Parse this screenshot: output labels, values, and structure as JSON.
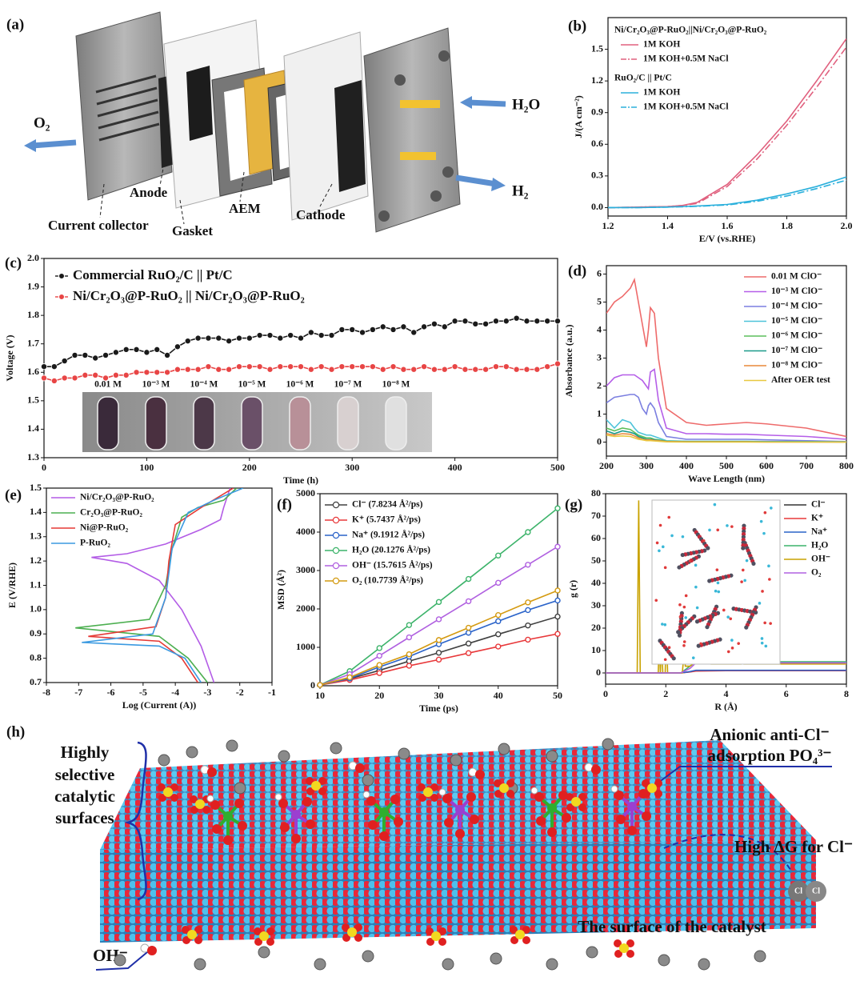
{
  "chart_data": [
    {
      "type": "line",
      "label": "(b)",
      "xlabel": "E/V (vs.RHE)",
      "ylabel": "J/(A cm⁻²)",
      "legend": "upper left",
      "x": [
        1.2,
        1.3,
        1.4,
        1.45,
        1.5,
        1.6,
        1.7,
        1.8,
        1.9,
        2.0
      ],
      "xlim": [
        1.2,
        2.0
      ],
      "xticks": [
        1.2,
        1.4,
        1.6,
        1.8,
        {
          "value": 2,
          "label": "2.0"
        }
      ],
      "ylim": [
        -0.08,
        1.8
      ],
      "yticks": [
        {
          "value": 0,
          "label": "0.0"
        },
        0.3,
        0.6,
        0.9,
        1.2,
        1.5
      ],
      "series_groups": [
        {
          "title": "Ni/Cr₂O₃@P-RuO₂||Ni/Cr₂O₃@P-RuO₂",
          "series": [
            {
              "name": "1M KOH",
              "color": "#e0607e",
              "dash": false,
              "values": [
                0,
                0.005,
                0.01,
                0.02,
                0.05,
                0.22,
                0.5,
                0.82,
                1.2,
                1.6
              ]
            },
            {
              "name": "1M KOH+0.5M NaCl",
              "color": "#e0607e",
              "dash": true,
              "values": [
                0,
                0.005,
                0.01,
                0.02,
                0.04,
                0.2,
                0.46,
                0.78,
                1.14,
                1.52
              ]
            }
          ]
        },
        {
          "title": "RuO₂/C || Pt/C",
          "series": [
            {
              "name": "1M KOH",
              "color": "#2bb0dc",
              "dash": false,
              "values": [
                0,
                0,
                0.005,
                0.01,
                0.015,
                0.03,
                0.07,
                0.13,
                0.2,
                0.29
              ]
            },
            {
              "name": "1M KOH+0.5M NaCl",
              "color": "#2bb0dc",
              "dash": true,
              "values": [
                0,
                0,
                0.005,
                0.008,
                0.012,
                0.025,
                0.06,
                0.11,
                0.18,
                0.26
              ]
            }
          ]
        }
      ]
    },
    {
      "type": "line",
      "label": "(c)",
      "xlabel": "Time (h)",
      "ylabel": "Voltage (V)",
      "legend": "upper left",
      "markers": true,
      "x": [
        0,
        10,
        20,
        30,
        40,
        50,
        60,
        70,
        80,
        90,
        100,
        110,
        120,
        130,
        140,
        150,
        160,
        170,
        180,
        190,
        200,
        210,
        220,
        230,
        240,
        250,
        260,
        270,
        280,
        290,
        300,
        310,
        320,
        330,
        340,
        350,
        360,
        370,
        380,
        390,
        400,
        410,
        420,
        430,
        440,
        450,
        460,
        470,
        480,
        490,
        500
      ],
      "xlim": [
        0,
        500
      ],
      "xticks": [
        0,
        100,
        200,
        300,
        400,
        500
      ],
      "ylim": [
        1.3,
        2.0
      ],
      "yticks": [
        1.3,
        1.4,
        1.5,
        1.6,
        1.7,
        1.8,
        1.9,
        {
          "value": 2,
          "label": "2.0"
        }
      ],
      "series": [
        {
          "name": "Commercial RuO₂/C || Pt/C",
          "color": "#1a1a1a",
          "values": [
            1.62,
            1.62,
            1.64,
            1.66,
            1.66,
            1.65,
            1.66,
            1.67,
            1.68,
            1.68,
            1.67,
            1.68,
            1.66,
            1.69,
            1.71,
            1.72,
            1.72,
            1.72,
            1.71,
            1.72,
            1.72,
            1.73,
            1.73,
            1.72,
            1.73,
            1.72,
            1.74,
            1.73,
            1.73,
            1.75,
            1.75,
            1.74,
            1.75,
            1.76,
            1.75,
            1.76,
            1.74,
            1.76,
            1.77,
            1.76,
            1.78,
            1.78,
            1.77,
            1.77,
            1.78,
            1.78,
            1.79,
            1.78,
            1.78,
            1.78,
            1.78
          ]
        },
        {
          "name": "Ni/Cr₂O₃@P-RuO₂ || Ni/Cr₂O₃@P-RuO₂",
          "color": "#e84545",
          "values": [
            1.58,
            1.57,
            1.58,
            1.58,
            1.59,
            1.59,
            1.58,
            1.59,
            1.59,
            1.6,
            1.6,
            1.6,
            1.6,
            1.61,
            1.61,
            1.61,
            1.62,
            1.61,
            1.61,
            1.62,
            1.62,
            1.62,
            1.61,
            1.62,
            1.62,
            1.62,
            1.61,
            1.62,
            1.61,
            1.62,
            1.62,
            1.62,
            1.62,
            1.61,
            1.62,
            1.61,
            1.61,
            1.62,
            1.61,
            1.61,
            1.62,
            1.61,
            1.61,
            1.61,
            1.62,
            1.62,
            1.61,
            1.61,
            1.61,
            1.62,
            1.63
          ]
        }
      ],
      "inset_labels": [
        "0.01 M",
        "10⁻³ M",
        "10⁻⁴ M",
        "10⁻⁵ M",
        "10⁻⁶ M",
        "10⁻⁷ M",
        "10⁻⁸ M"
      ]
    },
    {
      "type": "line",
      "label": "(d)",
      "xlabel": "Wave Length (nm)",
      "ylabel": "Absorbance (a.u.)",
      "legend": "upper right",
      "x": [
        200,
        220,
        240,
        260,
        270,
        280,
        290,
        300,
        305,
        310,
        320,
        330,
        350,
        400,
        450,
        500,
        550,
        600,
        700,
        800
      ],
      "xlim": [
        200,
        800
      ],
      "xticks": [
        200,
        300,
        400,
        500,
        600,
        700,
        800
      ],
      "ylim": [
        -0.5,
        6.3
      ],
      "yticks": [
        0,
        1,
        2,
        3,
        4,
        5,
        6
      ],
      "series": [
        {
          "name": "0.01 M ClO⁻",
          "color": "#ee6b6b",
          "values": [
            4.6,
            5.0,
            5.2,
            5.5,
            5.8,
            5.0,
            4.2,
            3.4,
            4.0,
            4.8,
            4.6,
            3.0,
            1.2,
            0.7,
            0.6,
            0.65,
            0.7,
            0.65,
            0.5,
            0.2
          ]
        },
        {
          "name": "10⁻³ M ClO⁻",
          "color": "#b55ee8",
          "values": [
            2.0,
            2.3,
            2.4,
            2.4,
            2.4,
            2.3,
            2.2,
            2.0,
            1.9,
            2.5,
            2.6,
            1.5,
            0.5,
            0.3,
            0.3,
            0.28,
            0.28,
            0.25,
            0.2,
            0.1
          ]
        },
        {
          "name": "10⁻⁴ M ClO⁻",
          "color": "#7b7fe0",
          "values": [
            1.4,
            1.6,
            1.65,
            1.7,
            1.7,
            1.6,
            1.2,
            1.0,
            1.3,
            1.4,
            1.2,
            0.7,
            0.2,
            0.1,
            0.1,
            0.1,
            0.1,
            0.08,
            0.05,
            0.02
          ]
        },
        {
          "name": "10⁻⁵ M ClO⁻",
          "color": "#4cc3d9",
          "values": [
            0.8,
            0.5,
            0.8,
            0.7,
            0.5,
            0.35,
            0.3,
            0.25,
            0.25,
            0.25,
            0.2,
            0.15,
            0.05,
            0.03,
            0.03,
            0.03,
            0.03,
            0.02,
            0.02,
            0.01
          ]
        },
        {
          "name": "10⁻⁶ M ClO⁻",
          "color": "#5cbf5c",
          "values": [
            0.5,
            0.4,
            0.5,
            0.45,
            0.35,
            0.25,
            0.2,
            0.15,
            0.15,
            0.15,
            0.1,
            0.08,
            0.03,
            0.02,
            0.02,
            0.02,
            0.02,
            0.01,
            0.01,
            0.01
          ]
        },
        {
          "name": "10⁻⁷ M ClO⁻",
          "color": "#1a9a8a",
          "values": [
            0.4,
            0.3,
            0.4,
            0.35,
            0.3,
            0.2,
            0.15,
            0.1,
            0.1,
            0.1,
            0.08,
            0.06,
            0.02,
            0.01,
            0.01,
            0.01,
            0.01,
            0.01,
            0.01,
            0
          ]
        },
        {
          "name": "10⁻⁸ M ClO⁻",
          "color": "#e8893a",
          "values": [
            0.3,
            0.25,
            0.3,
            0.28,
            0.22,
            0.15,
            0.1,
            0.08,
            0.08,
            0.08,
            0.06,
            0.05,
            0.02,
            0.01,
            0.01,
            0.01,
            0.01,
            0,
            0,
            0
          ]
        },
        {
          "name": "After OER test",
          "color": "#e8c840",
          "values": [
            0.25,
            0.2,
            0.22,
            0.2,
            0.15,
            0.1,
            0.08,
            0.05,
            0.05,
            0.05,
            0.04,
            0.03,
            0.01,
            0,
            0,
            0,
            0,
            0,
            0,
            0
          ]
        }
      ]
    },
    {
      "type": "line",
      "label": "(e)",
      "xlabel": "Log (Current (A))",
      "ylabel": "E (V/RHE)",
      "legend": "upper left",
      "xlim": [
        -8,
        -1
      ],
      "xticks": [
        -8,
        -7,
        -6,
        -5,
        -4,
        -3,
        -2,
        -1
      ],
      "ylim": [
        0.7,
        1.5
      ],
      "yticks": [
        0.7,
        0.8,
        0.9,
        {
          "value": 1,
          "label": "1.0"
        },
        1.1,
        1.2,
        1.3,
        1.4,
        1.5
      ],
      "series": [
        {
          "name": "Ni/Cr₂O₃@P-RuO₂",
          "color": "#b35ce6",
          "x": [
            -2.8,
            -3.2,
            -3.8,
            -4.5,
            -5.5,
            -6.6,
            -5.5,
            -4.3,
            -3.2,
            -2.6,
            -2.5,
            -2.3
          ],
          "values": [
            0.7,
            0.85,
            1.0,
            1.12,
            1.19,
            1.215,
            1.23,
            1.27,
            1.33,
            1.37,
            1.42,
            1.5
          ]
        },
        {
          "name": "Cr₂O₃@P-RuO₂",
          "color": "#4caf50",
          "x": [
            -3.0,
            -3.6,
            -4.5,
            -7.1,
            -4.8,
            -4.3,
            -4.1,
            -3.8,
            -3.3,
            -2.5,
            -2.1
          ],
          "values": [
            0.7,
            0.8,
            0.89,
            0.925,
            0.96,
            1.1,
            1.25,
            1.38,
            1.42,
            1.45,
            1.5
          ]
        },
        {
          "name": "Ni@P-RuO₂",
          "color": "#e53935",
          "x": [
            -3.3,
            -3.8,
            -4.5,
            -6.7,
            -4.6,
            -4.3,
            -4.2,
            -4.0,
            -3.2,
            -2.2
          ],
          "values": [
            0.7,
            0.8,
            0.87,
            0.89,
            0.93,
            1.05,
            1.2,
            1.35,
            1.42,
            1.5
          ]
        },
        {
          "name": "P-RuO₂",
          "color": "#3b9ae1",
          "x": [
            -3.2,
            -3.7,
            -4.5,
            -6.9,
            -4.7,
            -4.3,
            -4.1,
            -3.6,
            -2.8,
            -1.9
          ],
          "values": [
            0.7,
            0.8,
            0.85,
            0.865,
            0.9,
            1.05,
            1.25,
            1.4,
            1.45,
            1.5
          ]
        }
      ]
    },
    {
      "type": "line",
      "label": "(f)",
      "xlabel": "Time (ps)",
      "ylabel": "MSD (Å²)",
      "legend": "upper left",
      "markers": true,
      "x": [
        10,
        15,
        20,
        25,
        30,
        35,
        40,
        45,
        50
      ],
      "xlim": [
        10,
        50
      ],
      "xticks": [
        10,
        20,
        30,
        40,
        50
      ],
      "ylim": [
        0,
        5000
      ],
      "yticks": [
        0,
        1000,
        2000,
        3000,
        4000,
        5000
      ],
      "series": [
        {
          "name": "Cl⁻  (7.8234 Å²/ps)",
          "color": "#404040",
          "values": [
            20,
            180,
            400,
            640,
            860,
            1100,
            1340,
            1570,
            1800
          ]
        },
        {
          "name": "K⁺  (5.7437 Å²/ps)",
          "color": "#e8383a",
          "values": [
            20,
            150,
            330,
            520,
            680,
            850,
            1020,
            1200,
            1350
          ]
        },
        {
          "name": "Na⁺  (9.1912 Å²/ps)",
          "color": "#2a63c9",
          "values": [
            20,
            190,
            490,
            760,
            1080,
            1380,
            1680,
            1970,
            2220
          ]
        },
        {
          "name": "H₂O  (20.1276 Å²/ps)",
          "color": "#3cb36a",
          "values": [
            20,
            380,
            980,
            1580,
            2180,
            2780,
            3390,
            4000,
            4620
          ]
        },
        {
          "name": "OH⁻  (15.7615 Å²/ps)",
          "color": "#b060e0",
          "values": [
            20,
            300,
            780,
            1260,
            1730,
            2200,
            2680,
            3150,
            3620
          ]
        },
        {
          "name": "O₂  (10.7739 Å²/ps)",
          "color": "#d49a10",
          "values": [
            20,
            220,
            540,
            820,
            1190,
            1510,
            1840,
            2170,
            2480
          ]
        }
      ]
    },
    {
      "type": "line",
      "label": "(g)",
      "xlabel": "R (Å)",
      "ylabel": "g (r)",
      "legend": "upper right",
      "xlim": [
        0,
        8
      ],
      "xticks": [
        0,
        2,
        4,
        6,
        8
      ],
      "ylim": [
        -5,
        80
      ],
      "yticks": [
        0,
        10,
        20,
        30,
        40,
        50,
        60,
        70,
        80
      ],
      "series": [
        {
          "name": "Cl⁻",
          "color": "#333333",
          "x": [
            0,
            2.5,
            2.8,
            3.0,
            3.5,
            4,
            5,
            6,
            7,
            8
          ],
          "values": [
            0,
            0,
            0.5,
            1,
            1,
            1,
            1,
            1,
            1,
            1
          ]
        },
        {
          "name": "K⁺",
          "color": "#e8383a",
          "x": [
            0,
            2.5,
            2.8,
            3.0,
            3.5,
            4,
            5,
            6,
            7,
            8
          ],
          "values": [
            0,
            0,
            0.4,
            0.8,
            0.9,
            1,
            1,
            1,
            1,
            1
          ]
        },
        {
          "name": "Na⁺",
          "color": "#2a63c9",
          "x": [
            0,
            2.5,
            2.8,
            3.0,
            3.5,
            4,
            5,
            6,
            7,
            8
          ],
          "values": [
            0,
            0,
            0.6,
            1.2,
            1.2,
            1.2,
            1.2,
            1.2,
            1.2,
            1.2
          ]
        },
        {
          "name": "H₂O",
          "color": "#3cb36a",
          "x": [
            0,
            2.5,
            2.8,
            3.0,
            3.5,
            4,
            5,
            6,
            7,
            8
          ],
          "values": [
            0,
            0,
            3,
            5,
            5,
            5,
            5,
            5,
            5,
            5
          ]
        },
        {
          "name": "OH⁻",
          "color": "#c9a200",
          "x": [
            0,
            1.05,
            1.1,
            1.15,
            1.75,
            1.78,
            1.82,
            1.86,
            1.9,
            1.98,
            2.02,
            2.06,
            2.55,
            2.6,
            2.65,
            2.8,
            3.0,
            3.5,
            4.0,
            4.5,
            4.55,
            4.6,
            5.0,
            6.0,
            7.0,
            8.0
          ],
          "values": [
            0,
            0,
            77,
            0,
            0,
            15,
            0,
            14,
            0,
            0,
            21,
            0,
            0,
            8,
            3,
            3,
            5,
            4,
            4,
            4,
            12,
            4,
            4,
            4,
            4,
            4
          ]
        },
        {
          "name": "O₂",
          "color": "#b060e0",
          "x": [
            0,
            2.5,
            2.8,
            3.0,
            3.5,
            4,
            5,
            6,
            7,
            8
          ],
          "values": [
            0,
            0,
            2,
            4.5,
            4.5,
            4.5,
            4.6,
            4.5,
            4.5,
            4.5
          ]
        }
      ]
    }
  ],
  "diagram_a": {
    "label": "(a)",
    "o2": "O₂",
    "h2o": "H₂O",
    "h2": "H₂",
    "anode": "Anode",
    "current_collector": "Current collector",
    "gasket": "Gasket",
    "aem": "AEM",
    "cathode": "Cathode"
  },
  "diagram_h": {
    "label": "(h)",
    "surface_note": [
      "Highly",
      "selective",
      "catalytic",
      "surfaces"
    ],
    "anion_note": [
      "Anionic anti-Cl⁻",
      "adsorption PO₄³⁻"
    ],
    "dg_note": "High ΔG for Cl⁻",
    "cl_atoms": [
      "Cl",
      "Cl"
    ],
    "catalyst_note": "The surface of the catalyst",
    "oh_label": "OH⁻"
  }
}
